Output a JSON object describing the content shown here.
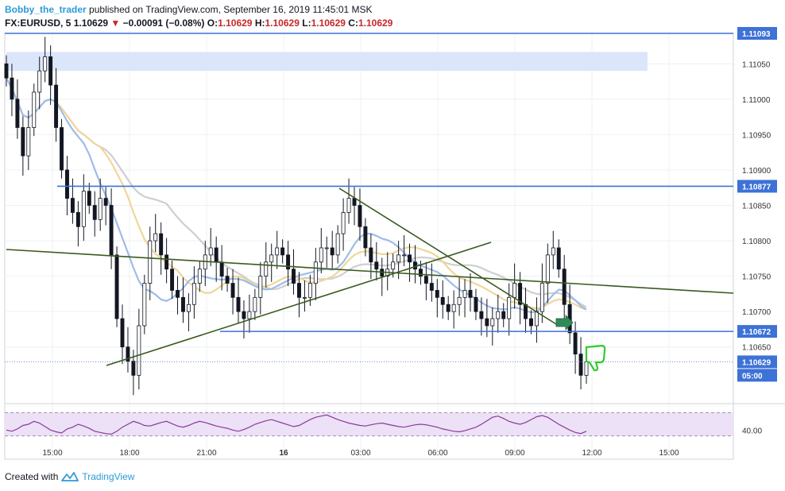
{
  "header": {
    "author": "Bobby_the_trader",
    "published_text": "published on TradingView.com, September 16, 2019 11:45:01 MSK",
    "symbol": "FX:EURUSD, 5",
    "last": "1.10629",
    "change": "−0.00091 (−0.08%)",
    "o_label": "O:",
    "o": "1.10629",
    "h_label": "H:",
    "h": "1.10629",
    "l_label": "L:",
    "l": "1.10629",
    "c_label": "C:",
    "c": "1.10629"
  },
  "footer": {
    "created_with": "Created with",
    "brand": "TradingView"
  },
  "colors": {
    "candle_up": "#ffffff",
    "candle_down": "#131722",
    "wick": "#131722",
    "level_line": "#3d72d6",
    "trendline": "#3a5a1e",
    "zone": "#dbe6fb",
    "ma_blue": "#9fbce8",
    "ma_yellow": "#f0d69a",
    "ma_gray": "#cfcfcf",
    "rsi_line": "#8a3a9a",
    "rsi_band": "#ece1f6",
    "signal_green": "#2ecc2e",
    "arrow_green": "#2e8b57"
  },
  "chart_data": {
    "type": "candlestick",
    "title": "",
    "x_ticks": [
      "15:00",
      "18:00",
      "21:00",
      "16",
      "03:00",
      "06:00",
      "09:00",
      "12:00",
      "15:00"
    ],
    "y_ticks": [
      "1.10650",
      "1.10700",
      "1.10750",
      "1.10800",
      "1.10850",
      "1.10900",
      "1.10950",
      "1.11000",
      "1.11050"
    ],
    "ylim": [
      1.1057,
      1.11093
    ],
    "price_tags": [
      {
        "label": "1.11093",
        "value": 1.11093
      },
      {
        "label": "1.10877",
        "value": 1.10877
      },
      {
        "label": "1.10672",
        "value": 1.10672
      },
      {
        "label": "1.10629",
        "value": 1.10629
      },
      {
        "label": "05:00",
        "value": 1.1061
      }
    ],
    "horizontal_levels": [
      1.11093,
      1.10877,
      1.10672
    ],
    "last_price": 1.10629,
    "supply_zone": [
      1.1104,
      1.1106
    ],
    "closes": [
      1.1103,
      1.11,
      1.1096,
      1.1092,
      1.1096,
      1.1101,
      1.1104,
      1.1106,
      1.1102,
      1.1096,
      1.109,
      1.1086,
      1.1084,
      1.1082,
      1.1087,
      1.1085,
      1.1083,
      1.1086,
      1.1085,
      1.1078,
      1.1069,
      1.1065,
      1.1063,
      1.1061,
      1.1068,
      1.1074,
      1.108,
      1.1081,
      1.1078,
      1.1076,
      1.1073,
      1.1072,
      1.107,
      1.1071,
      1.1074,
      1.1076,
      1.1078,
      1.1079,
      1.1077,
      1.1075,
      1.1074,
      1.1072,
      1.107,
      1.1069,
      1.107,
      1.1072,
      1.1075,
      1.1077,
      1.1078,
      1.1079,
      1.1078,
      1.1076,
      1.1074,
      1.1072,
      1.1072,
      1.1074,
      1.1077,
      1.1079,
      1.1079,
      1.1078,
      1.1081,
      1.1084,
      1.1086,
      1.1085,
      1.1082,
      1.1079,
      1.1077,
      1.1076,
      1.1075,
      1.1076,
      1.1077,
      1.1078,
      1.1078,
      1.1077,
      1.1076,
      1.1075,
      1.1074,
      1.1073,
      1.1072,
      1.1071,
      1.107,
      1.1071,
      1.1072,
      1.1073,
      1.1072,
      1.107,
      1.1069,
      1.1068,
      1.1069,
      1.107,
      1.1069,
      1.1072,
      1.1074,
      1.1071,
      1.1069,
      1.1068,
      1.107,
      1.1074,
      1.1078,
      1.1079,
      1.1076,
      1.1071,
      1.1067,
      1.1064,
      1.1061,
      1.10629
    ],
    "rsi": {
      "ylim": [
        20,
        80
      ],
      "band": [
        30,
        70
      ],
      "tick_label": "40.00",
      "tick_value": 40,
      "values": [
        40,
        38,
        42,
        48,
        50,
        55,
        52,
        46,
        40,
        37,
        35,
        42,
        45,
        50,
        47,
        43,
        38,
        36,
        34,
        33,
        38,
        45,
        50,
        55,
        52,
        48,
        47,
        50,
        53,
        55,
        51,
        47,
        45,
        48,
        52,
        55,
        53,
        50,
        47,
        45,
        43,
        40,
        38,
        41,
        45,
        50,
        53,
        56,
        58,
        55,
        52,
        49,
        46,
        48,
        53,
        58,
        62,
        64,
        66,
        62,
        58,
        55,
        52,
        50,
        48,
        47,
        49,
        51,
        52,
        50,
        48,
        46,
        45,
        47,
        49,
        50,
        49,
        47,
        45,
        42,
        40,
        38,
        37,
        39,
        42,
        45,
        50,
        56,
        62,
        64,
        60,
        55,
        52,
        50,
        53,
        58,
        63,
        65,
        62,
        56,
        50,
        45,
        40,
        36,
        34,
        38
      ]
    }
  }
}
